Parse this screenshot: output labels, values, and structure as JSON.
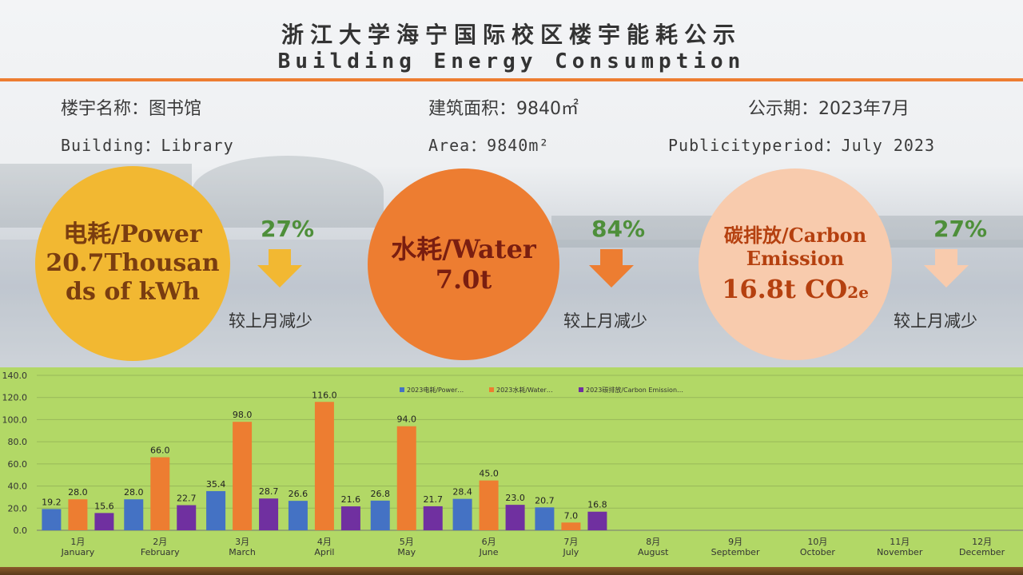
{
  "header": {
    "title_cn": "浙江大学海宁国际校区楼宇能耗公示",
    "title_en": "Building Energy Consumption"
  },
  "info": {
    "building_cn": "楼宇名称：图书馆",
    "building_en": "Building：Library",
    "area_cn": "建筑面积：9840㎡",
    "area_en": "Area：9840m²",
    "period_cn": "公示期：2023年7月",
    "period_en": "Publicityperiod：July 2023"
  },
  "metrics": [
    {
      "line1": "电耗/Power",
      "line2": "20.7Thousan",
      "line3": "ds of kWh",
      "pct": "27%",
      "change": "较上月减少",
      "color": "#f2b832",
      "arrow": "#f2b832"
    },
    {
      "line1": "水耗/Water",
      "line2": "7.0t",
      "line3": "",
      "pct": "84%",
      "change": "较上月减少",
      "color": "#ed7d31",
      "arrow": "#ed7d31"
    },
    {
      "line1": "碳排放/Carbon",
      "line2": "Emission",
      "line3": "16.8t CO2e",
      "pct": "27%",
      "change": "较上月减少",
      "color": "#f8cbad",
      "arrow": "#f8cbad"
    }
  ],
  "colors": {
    "power": "#4472c4",
    "water": "#ed7d31",
    "carbon": "#7030a0",
    "accent": "#ed7d31"
  },
  "chart_data": {
    "type": "bar",
    "categories": [
      "1月\nJanuary",
      "2月\nFebruary",
      "3月\nMarch",
      "4月\nApril",
      "5月\nMay",
      "6月\nJune",
      "7月\nJuly",
      "8月\nAugust",
      "9月\nSeptember",
      "10月\nOctober",
      "11月\nNovember",
      "12月\nDecember"
    ],
    "series": [
      {
        "name": "2023电耗/Power…",
        "color": "#4472c4",
        "values": [
          19.2,
          28.0,
          35.4,
          26.6,
          26.8,
          28.4,
          20.7,
          null,
          null,
          null,
          null,
          null
        ]
      },
      {
        "name": "2023水耗/Water…",
        "color": "#ed7d31",
        "values": [
          28.0,
          66.0,
          98.0,
          116.0,
          94.0,
          45.0,
          7.0,
          null,
          null,
          null,
          null,
          null
        ]
      },
      {
        "name": "2023碳排放/Carbon Emission…",
        "color": "#7030a0",
        "values": [
          15.6,
          22.7,
          28.7,
          21.6,
          21.7,
          23.0,
          16.8,
          null,
          null,
          null,
          null,
          null
        ]
      }
    ],
    "yticks": [
      "0.0",
      "20.0",
      "40.0",
      "60.0",
      "80.0",
      "100.0",
      "120.0",
      "140.0"
    ],
    "ylim": [
      0,
      140
    ],
    "grid": true,
    "legend": "top"
  }
}
